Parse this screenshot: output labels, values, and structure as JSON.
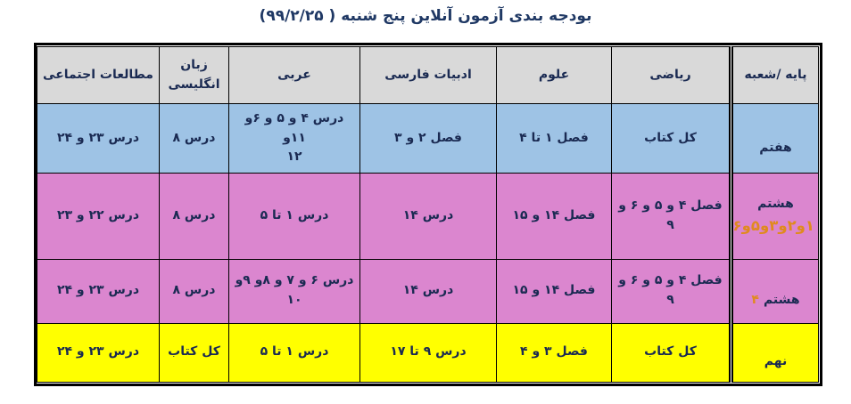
{
  "title": "بودجه بندی آزمون آنلاین پنج شنبه ( ۹۹/۲/۲۵)",
  "table": {
    "headers": {
      "grade": "پایه /شعبه",
      "math": "ریاضی",
      "science": "علوم",
      "literature": "ادبیات فارسی",
      "arabic": "عربی",
      "english": "زبان انگلیسی",
      "social": "مطالعات اجتماعی"
    },
    "rows": [
      {
        "grade": "هفتم",
        "grade_extra": "",
        "math": "کل کتاب",
        "science": "فصل ۱ تا ۴",
        "literature": "فصل ۲ و ۳",
        "arabic": "درس ۴ و ۵ و ۶و ۱۱و\n۱۲",
        "english": "درس ۸",
        "social": "درس ۲۳ و ۲۴"
      },
      {
        "grade": "هشتم",
        "grade_extra": "۱و۲و۳و۵و۶",
        "math": "فصل ۴ و ۵ و ۶ و\n۹",
        "science": "فصل ۱۴ و ۱۵",
        "literature": "درس ۱۴",
        "arabic": "درس ۱ تا ۵",
        "english": "درس ۸",
        "social": "درس ۲۲ و ۲۳"
      },
      {
        "grade": "هشتم",
        "grade_extra": "۴",
        "math": "فصل ۴ و ۵ و ۶ و\n۹",
        "science": "فصل ۱۴ و ۱۵",
        "literature": "درس ۱۴",
        "arabic": "درس ۶ و ۷ و ۸و ۹و\n۱۰",
        "english": "درس ۸",
        "social": "درس ۲۳ و ۲۴"
      },
      {
        "grade": "نهم",
        "grade_extra": "",
        "math": "کل کتاب",
        "science": "فصل ۳ و ۴",
        "literature": "درس ۹ تا ۱۷",
        "arabic": "درس ۱ تا ۵",
        "english": "کل کتاب",
        "social": "درس ۲۳ و ۲۴"
      }
    ]
  },
  "colors": {
    "title_text": "#1F3864",
    "header_bg": "#D9D9D9",
    "row_seventh_bg": "#9EC3E5",
    "row_eighth_bg": "#DB86CF",
    "row_ninth_bg": "#FFFF00",
    "cell_text": "#1A2A52",
    "grade_extra_text": "#E08A1E",
    "border": "#000000"
  }
}
